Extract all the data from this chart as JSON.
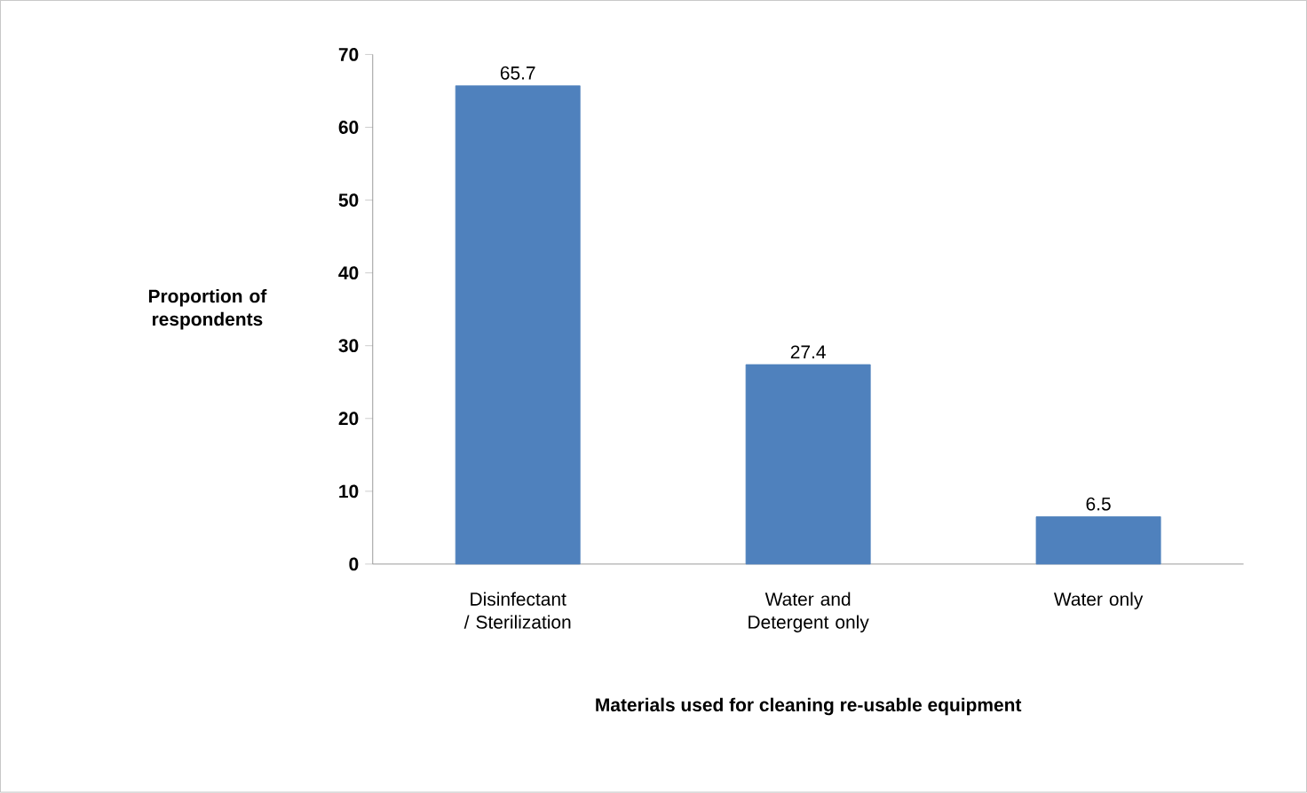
{
  "chart_data": {
    "type": "bar",
    "xlabel": "Materials used for cleaning re-usable equipment",
    "ylabel": "Proportion of respondents",
    "categories": [
      "Disinfectant / Sterilization",
      "Water and Detergent only",
      "Water only"
    ],
    "values": [
      65.7,
      27.4,
      6.5
    ],
    "color": "#4f81bd",
    "ylim": [
      0,
      70
    ],
    "yticks": [
      0,
      10,
      20,
      30,
      40,
      50,
      60,
      70
    ],
    "data_labels": true,
    "grid": false
  }
}
